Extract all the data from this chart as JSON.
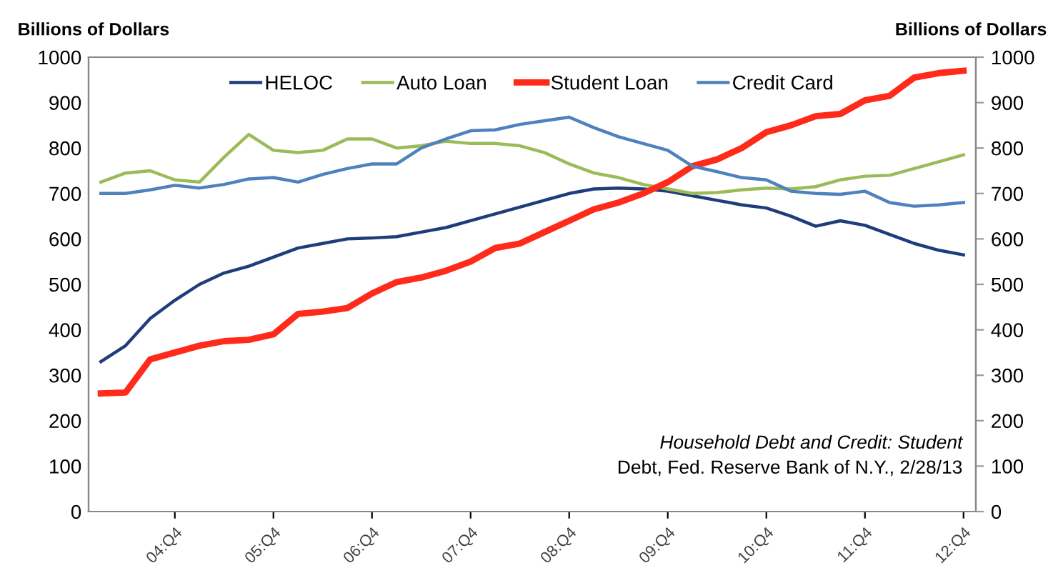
{
  "chart_data": {
    "type": "line",
    "ylabel": "Billions of Dollars",
    "y2label": "Billions of Dollars",
    "categories": [
      null,
      null,
      null,
      "04:Q4",
      null,
      null,
      null,
      "05:Q4",
      null,
      null,
      null,
      "06:Q4",
      null,
      null,
      null,
      "07:Q4",
      null,
      null,
      null,
      "08:Q4",
      null,
      null,
      null,
      "09:Q4",
      null,
      null,
      null,
      "10:Q4",
      null,
      null,
      null,
      "11:Q4",
      null,
      null,
      null,
      "12:Q4"
    ],
    "series": [
      {
        "name": "HELOC",
        "color": "#1f3d7a",
        "values": [
          330,
          365,
          425,
          465,
          500,
          525,
          540,
          560,
          580,
          590,
          600,
          602,
          605,
          615,
          625,
          640,
          655,
          670,
          685,
          700,
          710,
          712,
          710,
          705,
          695,
          685,
          675,
          668,
          650,
          628,
          640,
          630,
          610,
          590,
          575,
          565
        ]
      },
      {
        "name": "Auto Loan",
        "color": "#9bbb59",
        "values": [
          725,
          745,
          750,
          730,
          725,
          780,
          830,
          795,
          790,
          795,
          820,
          820,
          800,
          805,
          815,
          810,
          810,
          805,
          790,
          765,
          745,
          735,
          720,
          710,
          700,
          702,
          708,
          712,
          710,
          715,
          730,
          738,
          740,
          755,
          770,
          785
        ]
      },
      {
        "name": "Student Loan",
        "color": "#ff2a1a",
        "values": [
          260,
          262,
          335,
          350,
          365,
          375,
          378,
          390,
          435,
          440,
          448,
          480,
          505,
          515,
          530,
          550,
          580,
          590,
          615,
          640,
          665,
          680,
          700,
          725,
          760,
          775,
          800,
          835,
          850,
          870,
          875,
          905,
          915,
          955,
          965,
          970
        ]
      },
      {
        "name": "Credit Card",
        "color": "#4f81bd",
        "values": [
          700,
          700,
          708,
          718,
          712,
          720,
          732,
          735,
          725,
          742,
          755,
          765,
          765,
          800,
          820,
          838,
          840,
          852,
          860,
          868,
          845,
          825,
          810,
          795,
          760,
          748,
          735,
          730,
          705,
          700,
          698,
          705,
          680,
          672,
          675,
          680
        ]
      }
    ],
    "ylim": [
      0,
      1000
    ],
    "yticks": [
      0,
      100,
      200,
      300,
      400,
      500,
      600,
      700,
      800,
      900,
      1000
    ],
    "y2lim": [
      0,
      1000
    ],
    "y2ticks": [
      0,
      100,
      200,
      300,
      400,
      500,
      600,
      700,
      800,
      900,
      1000
    ],
    "annotations": [
      "Household Debt and Credit: Student",
      "Debt, Fed. Reserve Bank of N.Y., 2/28/13"
    ],
    "legend": "top",
    "grid": false,
    "marker": "none",
    "line_style": "solid"
  }
}
